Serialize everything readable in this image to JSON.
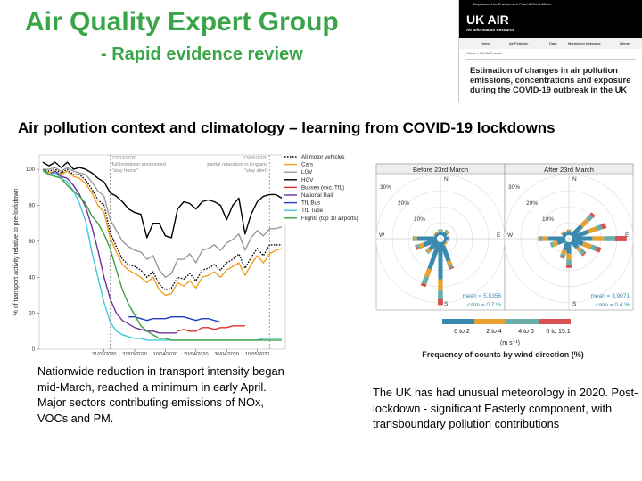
{
  "header": {
    "title": "Air Quality Expert Group",
    "subtitle": "- Rapid evidence review",
    "section_heading": "Air pollution context and climatology – learning from COVID-19 lockdowns"
  },
  "ukair": {
    "top_bar": "Department for Environment Food & Rural Affairs",
    "brand": "UK AIR",
    "brand_sub": "Air Information Resource",
    "nav": [
      "Home",
      "Air Pollution",
      "Data",
      "Monitoring Networks",
      "Library"
    ],
    "breadcrumb": "Home > UK-AIR news",
    "report_title": "Estimation of changes in air pollution emissions, concentrations and exposure during the COVID-19 outbreak in the UK"
  },
  "left_caption": {
    "line1": "Nationwide reduction in transport intensity began mid-March, reached a minimum in early April.",
    "line2": "Major sectors contributing emissions of NOx, VOCs and PM."
  },
  "right_caption": "The UK has had unusual meteorology in 2020. Post-lockdown - significant Easterly component, with transboundary pollution contributions",
  "chart_data": [
    {
      "type": "line",
      "ylabel": "% of transport activity relative to pre-lockdown",
      "xlabel": "",
      "x_tick_labels": [
        "21/03/2020",
        "31/03/2020",
        "10/04/2020",
        "20/04/2020",
        "30/04/2020",
        "10/05/2020"
      ],
      "y_ticks": [
        0,
        20,
        40,
        60,
        80,
        100
      ],
      "ylim": [
        0,
        108
      ],
      "annotations": [
        {
          "date": "23/03/2020",
          "lines": [
            "23/03/2020",
            "full lockdown announced",
            "\"stay home\""
          ]
        },
        {
          "date": "13/05/2020",
          "lines": [
            "13/05/2020",
            "partial relaxation in England",
            "\"stay alert\""
          ]
        }
      ],
      "x_dates": [
        "01/03",
        "03/03",
        "05/03",
        "07/03",
        "09/03",
        "11/03",
        "13/03",
        "15/03",
        "17/03",
        "19/03",
        "21/03",
        "23/03",
        "25/03",
        "27/03",
        "29/03",
        "31/03",
        "02/04",
        "04/04",
        "06/04",
        "08/04",
        "10/04",
        "12/04",
        "14/04",
        "16/04",
        "18/04",
        "20/04",
        "22/04",
        "24/04",
        "26/04",
        "28/04",
        "30/04",
        "02/05",
        "04/05",
        "06/05",
        "08/05",
        "10/05",
        "12/05",
        "14/05",
        "16/05",
        "18/05"
      ],
      "series": [
        {
          "name": "All motor vehicles",
          "color": "#000000",
          "dash": "dotted",
          "values": [
            100,
            99,
            100,
            98,
            100,
            97,
            97,
            94,
            89,
            83,
            80,
            65,
            57,
            50,
            47,
            46,
            44,
            40,
            43,
            36,
            33,
            34,
            40,
            39,
            42,
            38,
            44,
            45,
            47,
            44,
            48,
            50,
            53,
            45,
            51,
            56,
            52,
            58,
            58,
            58
          ]
        },
        {
          "name": "Cars",
          "color": "#f0a020",
          "values": [
            100,
            98,
            99,
            97,
            99,
            96,
            95,
            92,
            87,
            80,
            76,
            62,
            54,
            47,
            44,
            42,
            40,
            37,
            40,
            33,
            30,
            31,
            37,
            35,
            38,
            34,
            40,
            41,
            43,
            40,
            44,
            46,
            48,
            41,
            47,
            52,
            48,
            53,
            55,
            56
          ]
        },
        {
          "name": "LGV",
          "color": "#999999",
          "values": [
            100,
            100,
            101,
            99,
            101,
            99,
            98,
            97,
            93,
            88,
            85,
            72,
            66,
            60,
            57,
            55,
            54,
            50,
            52,
            44,
            40,
            42,
            50,
            50,
            53,
            48,
            55,
            56,
            58,
            55,
            59,
            61,
            64,
            55,
            62,
            66,
            63,
            67,
            67,
            68
          ]
        },
        {
          "name": "HGV",
          "color": "#000000",
          "values": [
            104,
            102,
            104,
            101,
            104,
            100,
            101,
            100,
            98,
            95,
            93,
            87,
            85,
            82,
            78,
            76,
            75,
            62,
            70,
            70,
            63,
            62,
            78,
            82,
            81,
            78,
            82,
            83,
            82,
            80,
            72,
            80,
            84,
            64,
            75,
            82,
            85,
            86,
            86,
            84
          ]
        },
        {
          "name": "Busses (exc. TfL)",
          "color": "#e03030",
          "values": [
            null,
            null,
            null,
            null,
            null,
            null,
            null,
            null,
            null,
            null,
            null,
            null,
            null,
            null,
            null,
            null,
            null,
            null,
            null,
            null,
            null,
            null,
            10,
            11,
            10,
            10,
            12,
            12,
            11,
            12,
            12,
            13,
            13,
            13,
            null,
            null,
            null,
            null,
            null,
            null
          ]
        },
        {
          "name": "National Rail",
          "color": "#7030a0",
          "values": [
            100,
            97,
            99,
            96,
            95,
            91,
            86,
            79,
            68,
            55,
            40,
            28,
            20,
            16,
            14,
            12,
            11,
            10,
            10,
            9,
            9,
            9,
            9,
            null,
            null,
            null,
            null,
            null,
            null,
            null,
            null,
            null,
            null,
            null,
            null,
            null,
            null,
            null,
            null,
            null
          ]
        },
        {
          "name": "TfL Bus",
          "color": "#2040c0",
          "values": [
            null,
            null,
            null,
            null,
            null,
            null,
            null,
            null,
            null,
            null,
            null,
            null,
            null,
            null,
            18,
            18,
            17,
            16,
            17,
            17,
            17,
            18,
            18,
            18,
            17,
            16,
            17,
            17,
            16,
            15,
            null,
            null,
            null,
            null,
            null,
            null,
            null,
            null,
            null,
            null
          ]
        },
        {
          "name": "TfL Tube",
          "color": "#40c8e0",
          "values": [
            99,
            97,
            98,
            95,
            93,
            88,
            81,
            71,
            54,
            40,
            26,
            15,
            10,
            8,
            7,
            6,
            6,
            5,
            5,
            5,
            5,
            5,
            5,
            5,
            5,
            5,
            5,
            5,
            5,
            5,
            5,
            5,
            5,
            5,
            5,
            5,
            6,
            6,
            6,
            6
          ]
        },
        {
          "name": "Flights (top 10 airports)",
          "color": "#40a040",
          "values": [
            100,
            97,
            96,
            95,
            91,
            88,
            85,
            81,
            74,
            70,
            64,
            56,
            44,
            33,
            25,
            19,
            13,
            10,
            8,
            6,
            6,
            5,
            5,
            5,
            5,
            5,
            5,
            5,
            5,
            5,
            5,
            5,
            5,
            5,
            5,
            5,
            5,
            5,
            5,
            5
          ]
        }
      ]
    },
    {
      "type": "polar-bar",
      "title": "Frequency of counts by wind direction (%)",
      "panels": [
        {
          "title": "Before 23rd March",
          "mean": "mean = 5.5356",
          "calm": "calm = 0.7 %"
        },
        {
          "title": "After 23rd March",
          "mean": "mean = 3.9071",
          "calm": "calm = 0.4 %"
        }
      ],
      "ring_labels": [
        "10%",
        "20%",
        "30%"
      ],
      "directions": [
        "N",
        "E",
        "S",
        "W"
      ],
      "speed_bins": [
        {
          "label": "0 to 2",
          "color": "#3a8ab0"
        },
        {
          "label": "2 to 4",
          "color": "#e8a030"
        },
        {
          "label": "4 to 6",
          "color": "#6aaeaa"
        },
        {
          "label": "6 to 15.1",
          "color": "#d85050"
        }
      ],
      "speed_unit": "(m s⁻¹)"
    }
  ]
}
